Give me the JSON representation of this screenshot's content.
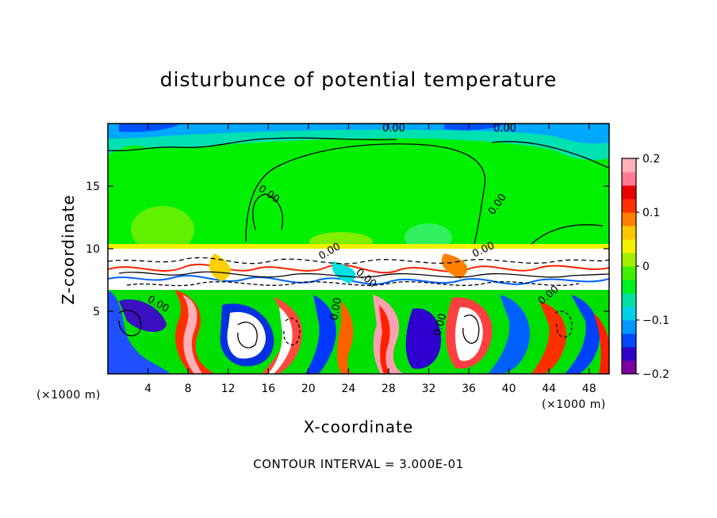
{
  "chart_data": {
    "type": "heatmap",
    "title": "disturbunce of potential temperature",
    "xlabel": "X-coordinate",
    "ylabel": "Z-coordinate",
    "x_unit": "(×1000 m)",
    "x_ticks": [
      4,
      8,
      12,
      16,
      20,
      24,
      28,
      32,
      36,
      40,
      44,
      48
    ],
    "y_ticks": [
      5,
      10,
      15
    ],
    "xlim": [
      0,
      50
    ],
    "ylim": [
      0,
      20
    ],
    "colorbar": {
      "ticks": [
        0.2,
        0.1,
        0,
        -0.1,
        -0.2
      ],
      "tick_labels": [
        "0.2",
        "0.1",
        "0",
        "−0.1",
        "−0.2"
      ],
      "range": [
        -0.2,
        0.2
      ],
      "colors": [
        "#7a009e",
        "#3000c8",
        "#0048ff",
        "#0098ff",
        "#00d0e8",
        "#00e0a0",
        "#00f020",
        "#40f000",
        "#a0f000",
        "#f0f000",
        "#ffc800",
        "#ff8000",
        "#ff3000",
        "#e80000",
        "#ff7a90",
        "#ffb0b8"
      ]
    },
    "contour_labels": [
      "0.00",
      "0.00",
      "0.00",
      "0.00",
      "0.00",
      "0.00",
      "0.00",
      "0.00",
      "0.00",
      "0.00",
      "0.00"
    ],
    "footer": "CONTOUR INTERVAL = 3.000E-01"
  }
}
